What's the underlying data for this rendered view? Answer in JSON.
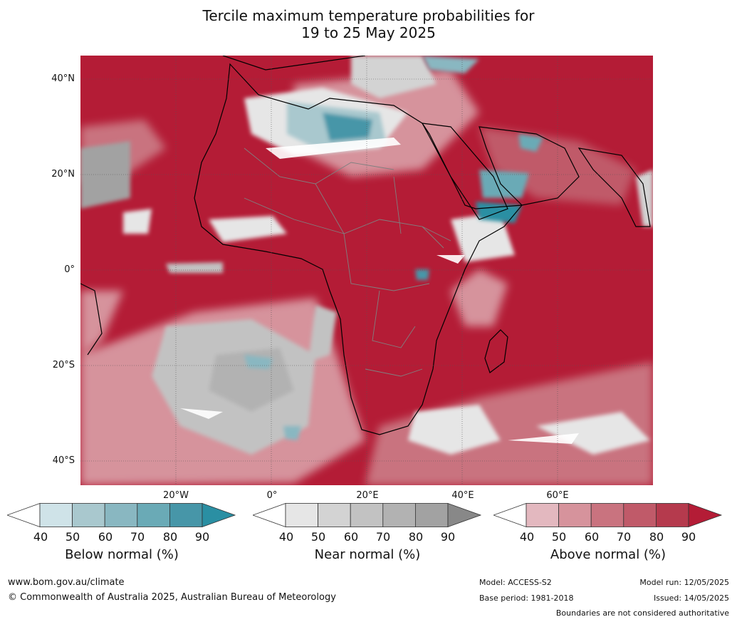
{
  "title": {
    "line1": "Tercile maximum temperature probabilities for",
    "line2": "19 to 25 May 2025"
  },
  "axes": {
    "lat_labels": [
      "40°N",
      "20°N",
      "0°",
      "20°S",
      "40°S"
    ],
    "lon_labels": [
      "20°W",
      "0°",
      "20°E",
      "40°E",
      "60°E"
    ]
  },
  "colorbars": [
    {
      "label": "Below normal (%)",
      "ticks": [
        "40",
        "50",
        "60",
        "70",
        "80",
        "90"
      ],
      "colors": [
        "#cfe3e8",
        "#a9c8ce",
        "#89b7c1",
        "#6aaab6",
        "#4796a8",
        "#2a8fa3"
      ]
    },
    {
      "label": "Near normal (%)",
      "ticks": [
        "40",
        "50",
        "60",
        "70",
        "80",
        "90"
      ],
      "colors": [
        "#e6e6e6",
        "#d3d3d3",
        "#c2c2c2",
        "#b2b2b2",
        "#a2a2a2",
        "#888888"
      ]
    },
    {
      "label": "Above normal (%)",
      "ticks": [
        "40",
        "50",
        "60",
        "70",
        "80",
        "90"
      ],
      "colors": [
        "#e3b8bf",
        "#d6939c",
        "#c9737f",
        "#c05a69",
        "#b53a4d",
        "#b41c36"
      ]
    }
  ],
  "footer": {
    "url": "www.bom.gov.au/climate",
    "copyright": "© Commonwealth of Australia 2025, Australian Bureau of Meteorology",
    "model": "Model: ACCESS-S2",
    "base_period": "Base period: 1981-2018",
    "model_run": "Model run: 12/05/2025",
    "issued": "Issued: 14/05/2025",
    "disclaimer": "Boundaries are not considered authoritative"
  },
  "colors": {
    "above_dominant": "#b41c36",
    "near_gray": "#c2c2c2",
    "below_teal": "#4796a8"
  }
}
